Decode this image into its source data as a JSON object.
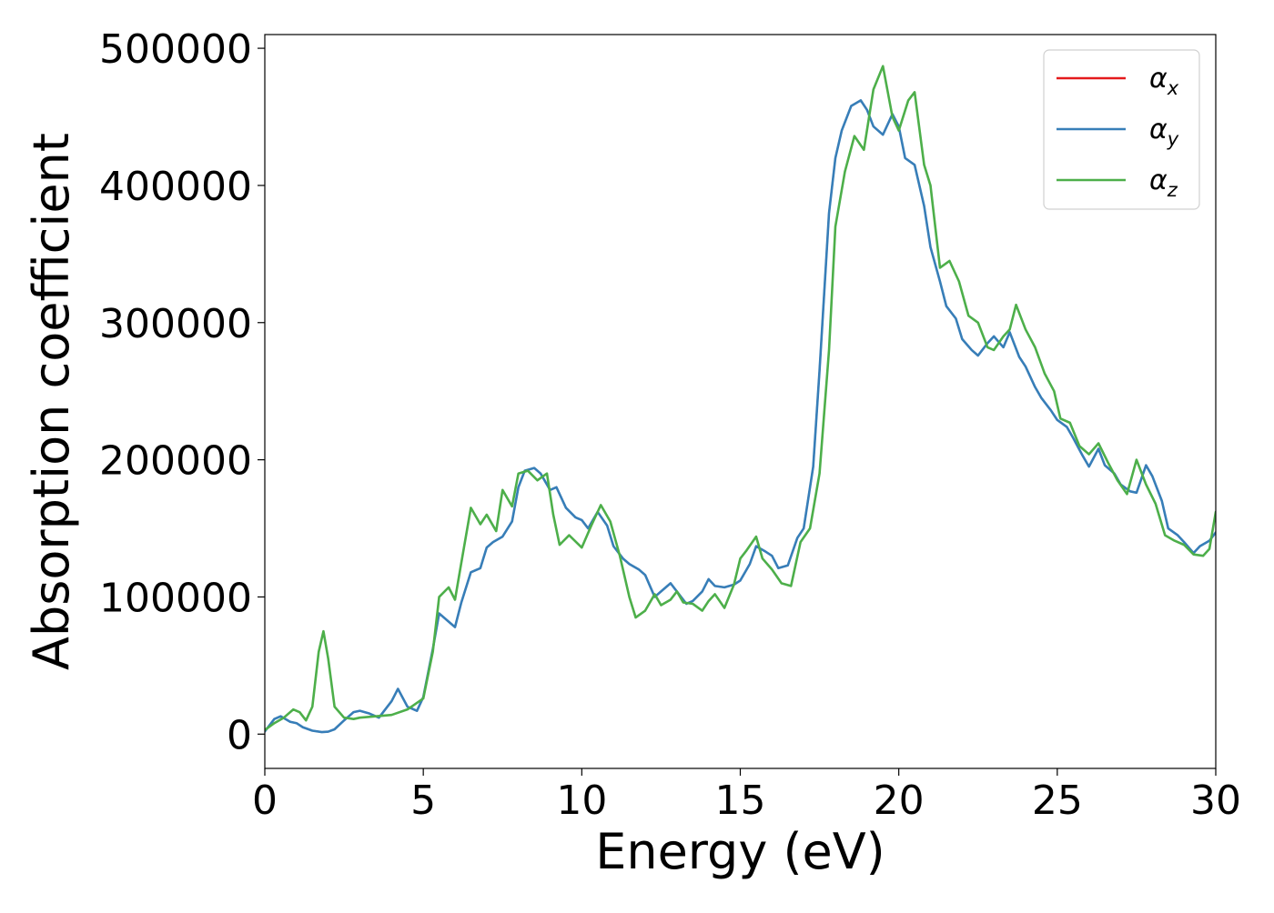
{
  "chart_data": {
    "type": "line",
    "title": "",
    "xlabel": "Energy (eV)",
    "ylabel": "Absorption coefficient",
    "xlim": [
      0,
      30
    ],
    "ylim": [
      -25000,
      510000
    ],
    "xticks": [
      0,
      5,
      10,
      15,
      20,
      25,
      30
    ],
    "yticks": [
      0,
      100000,
      200000,
      300000,
      400000,
      500000
    ],
    "grid": false,
    "legend": {
      "position": "top-right",
      "entries": [
        {
          "base": "α",
          "sub": "x",
          "color": "#e41a1c"
        },
        {
          "base": "α",
          "sub": "y",
          "color": "#377eb8"
        },
        {
          "base": "α",
          "sub": "z",
          "color": "#4daf4a"
        }
      ]
    },
    "series": [
      {
        "name": "α_x",
        "color": "#e41a1c",
        "x": [
          0,
          0.3,
          0.5,
          0.8,
          1.0,
          1.2,
          1.5,
          1.8,
          2.0,
          2.2,
          2.5,
          2.8,
          3.0,
          3.3,
          3.6,
          4.0,
          4.2,
          4.5,
          4.8,
          5.0,
          5.3,
          5.5,
          5.8,
          6.0,
          6.2,
          6.5,
          6.8,
          7.0,
          7.2,
          7.5,
          7.8,
          8.0,
          8.2,
          8.5,
          8.7,
          9.0,
          9.2,
          9.5,
          9.8,
          10.0,
          10.2,
          10.5,
          10.8,
          11.0,
          11.3,
          11.5,
          11.8,
          12.0,
          12.3,
          12.5,
          12.8,
          13.0,
          13.3,
          13.5,
          13.8,
          14.0,
          14.2,
          14.5,
          14.8,
          15.0,
          15.3,
          15.5,
          15.8,
          16.0,
          16.2,
          16.5,
          16.8,
          17.0,
          17.3,
          17.5,
          17.8,
          18.0,
          18.2,
          18.5,
          18.8,
          19.0,
          19.2,
          19.5,
          19.8,
          20.0,
          20.2,
          20.5,
          20.8,
          21.0,
          21.3,
          21.5,
          21.8,
          22.0,
          22.3,
          22.5,
          22.8,
          23.0,
          23.3,
          23.5,
          23.8,
          24.0,
          24.3,
          24.5,
          24.8,
          25.0,
          25.3,
          25.5,
          25.8,
          26.0,
          26.3,
          26.5,
          26.8,
          27.0,
          27.3,
          27.5,
          27.8,
          28.0,
          28.3,
          28.5,
          28.8,
          29.0,
          29.3,
          29.5,
          29.8,
          30.0
        ],
        "y": [
          2000,
          11000,
          13000,
          9000,
          8000,
          5000,
          2500,
          1500,
          1800,
          3500,
          10000,
          16000,
          17000,
          15000,
          12000,
          24000,
          33000,
          20000,
          17000,
          27000,
          62000,
          88000,
          82000,
          78000,
          96000,
          118000,
          121000,
          136000,
          140000,
          144000,
          155000,
          180000,
          192000,
          194000,
          190000,
          178000,
          180000,
          165000,
          158000,
          156000,
          150000,
          162000,
          152000,
          137000,
          128000,
          124000,
          120000,
          116000,
          100000,
          104000,
          110000,
          104000,
          95000,
          97000,
          104000,
          113000,
          108000,
          107000,
          109000,
          112000,
          124000,
          137000,
          133000,
          130000,
          121000,
          123000,
          143000,
          150000,
          195000,
          265000,
          380000,
          420000,
          440000,
          458000,
          462000,
          455000,
          443000,
          437000,
          452000,
          443000,
          420000,
          415000,
          385000,
          355000,
          330000,
          312000,
          303000,
          288000,
          280000,
          276000,
          285000,
          290000,
          282000,
          293000,
          275000,
          268000,
          253000,
          245000,
          236000,
          229000,
          224000,
          216000,
          203000,
          195000,
          208000,
          196000,
          190000,
          182000,
          177000,
          176000,
          196000,
          188000,
          170000,
          150000,
          145000,
          140000,
          132000,
          137000,
          141000,
          147000
        ],
        "width": 2.0
      },
      {
        "name": "α_y",
        "color": "#377eb8",
        "x": [
          0,
          0.3,
          0.5,
          0.8,
          1.0,
          1.2,
          1.5,
          1.8,
          2.0,
          2.2,
          2.5,
          2.8,
          3.0,
          3.3,
          3.6,
          4.0,
          4.2,
          4.5,
          4.8,
          5.0,
          5.3,
          5.5,
          5.8,
          6.0,
          6.2,
          6.5,
          6.8,
          7.0,
          7.2,
          7.5,
          7.8,
          8.0,
          8.2,
          8.5,
          8.7,
          9.0,
          9.2,
          9.5,
          9.8,
          10.0,
          10.2,
          10.5,
          10.8,
          11.0,
          11.3,
          11.5,
          11.8,
          12.0,
          12.3,
          12.5,
          12.8,
          13.0,
          13.3,
          13.5,
          13.8,
          14.0,
          14.2,
          14.5,
          14.8,
          15.0,
          15.3,
          15.5,
          15.8,
          16.0,
          16.2,
          16.5,
          16.8,
          17.0,
          17.3,
          17.5,
          17.8,
          18.0,
          18.2,
          18.5,
          18.8,
          19.0,
          19.2,
          19.5,
          19.8,
          20.0,
          20.2,
          20.5,
          20.8,
          21.0,
          21.3,
          21.5,
          21.8,
          22.0,
          22.3,
          22.5,
          22.8,
          23.0,
          23.3,
          23.5,
          23.8,
          24.0,
          24.3,
          24.5,
          24.8,
          25.0,
          25.3,
          25.5,
          25.8,
          26.0,
          26.3,
          26.5,
          26.8,
          27.0,
          27.3,
          27.5,
          27.8,
          28.0,
          28.3,
          28.5,
          28.8,
          29.0,
          29.3,
          29.5,
          29.8,
          30.0
        ],
        "y": [
          2000,
          11000,
          13000,
          9000,
          8000,
          5000,
          2500,
          1500,
          1800,
          3500,
          10000,
          16000,
          17000,
          15000,
          12000,
          24000,
          33000,
          20000,
          17000,
          27000,
          62000,
          88000,
          82000,
          78000,
          96000,
          118000,
          121000,
          136000,
          140000,
          144000,
          155000,
          180000,
          192000,
          194000,
          190000,
          178000,
          180000,
          165000,
          158000,
          156000,
          150000,
          162000,
          152000,
          137000,
          128000,
          124000,
          120000,
          116000,
          100000,
          104000,
          110000,
          104000,
          95000,
          97000,
          104000,
          113000,
          108000,
          107000,
          109000,
          112000,
          124000,
          137000,
          133000,
          130000,
          121000,
          123000,
          143000,
          150000,
          195000,
          265000,
          380000,
          420000,
          440000,
          458000,
          462000,
          455000,
          443000,
          437000,
          452000,
          443000,
          420000,
          415000,
          385000,
          355000,
          330000,
          312000,
          303000,
          288000,
          280000,
          276000,
          285000,
          290000,
          282000,
          293000,
          275000,
          268000,
          253000,
          245000,
          236000,
          229000,
          224000,
          216000,
          203000,
          195000,
          208000,
          196000,
          190000,
          182000,
          177000,
          176000,
          196000,
          188000,
          170000,
          150000,
          145000,
          140000,
          132000,
          137000,
          141000,
          147000
        ],
        "width": 2.6
      },
      {
        "name": "α_z",
        "color": "#4daf4a",
        "x": [
          0,
          0.3,
          0.6,
          0.9,
          1.1,
          1.3,
          1.5,
          1.7,
          1.85,
          2.0,
          2.2,
          2.5,
          2.8,
          3.0,
          3.5,
          4.0,
          4.5,
          5.0,
          5.3,
          5.5,
          5.8,
          6.0,
          6.2,
          6.5,
          6.8,
          7.0,
          7.3,
          7.5,
          7.8,
          8.0,
          8.3,
          8.6,
          8.9,
          9.1,
          9.3,
          9.6,
          10.0,
          10.3,
          10.6,
          10.9,
          11.2,
          11.5,
          11.7,
          12.0,
          12.3,
          12.5,
          12.8,
          13.0,
          13.2,
          13.5,
          13.8,
          14.0,
          14.2,
          14.5,
          14.8,
          15.0,
          15.2,
          15.5,
          15.7,
          16.0,
          16.3,
          16.6,
          16.9,
          17.2,
          17.5,
          17.8,
          18.0,
          18.3,
          18.6,
          18.9,
          19.2,
          19.5,
          19.8,
          20.0,
          20.3,
          20.5,
          20.8,
          21.0,
          21.3,
          21.6,
          21.9,
          22.2,
          22.5,
          22.8,
          23.0,
          23.3,
          23.5,
          23.7,
          24.0,
          24.3,
          24.6,
          24.9,
          25.1,
          25.4,
          25.7,
          26.0,
          26.3,
          26.6,
          26.9,
          27.2,
          27.5,
          27.8,
          28.1,
          28.4,
          28.7,
          29.0,
          29.3,
          29.6,
          29.8,
          30.0
        ],
        "y": [
          3000,
          8000,
          12000,
          18000,
          16000,
          10000,
          20000,
          60000,
          75000,
          55000,
          20000,
          12000,
          11000,
          12000,
          13000,
          14000,
          18000,
          26000,
          60000,
          100000,
          107000,
          98000,
          125000,
          165000,
          153000,
          160000,
          148000,
          178000,
          166000,
          190000,
          192000,
          185000,
          190000,
          160000,
          138000,
          145000,
          136000,
          152000,
          167000,
          155000,
          130000,
          100000,
          85000,
          90000,
          102000,
          94000,
          98000,
          104000,
          96000,
          95000,
          90000,
          97000,
          102000,
          92000,
          109000,
          128000,
          134000,
          144000,
          128000,
          120000,
          110000,
          108000,
          140000,
          150000,
          190000,
          280000,
          370000,
          410000,
          436000,
          426000,
          470000,
          487000,
          450000,
          440000,
          462000,
          468000,
          415000,
          400000,
          340000,
          345000,
          330000,
          305000,
          300000,
          282000,
          280000,
          290000,
          295000,
          313000,
          295000,
          282000,
          263000,
          250000,
          230000,
          227000,
          210000,
          204000,
          212000,
          198000,
          185000,
          175000,
          200000,
          182000,
          168000,
          145000,
          141000,
          138000,
          131000,
          130000,
          135000,
          162000
        ],
        "width": 2.6
      }
    ]
  }
}
